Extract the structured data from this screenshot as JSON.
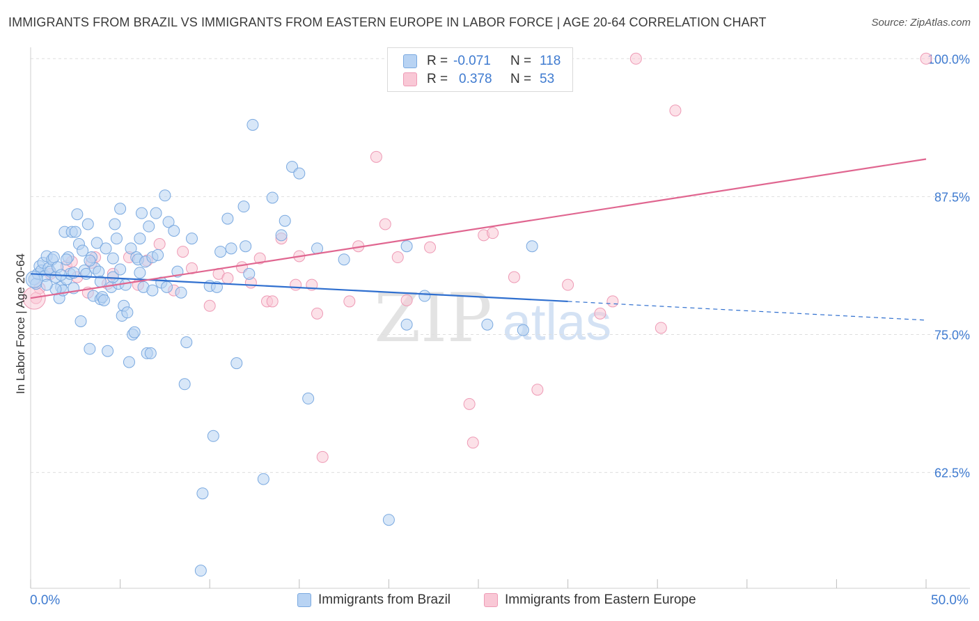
{
  "header": {
    "title": "IMMIGRANTS FROM BRAZIL VS IMMIGRANTS FROM EASTERN EUROPE IN LABOR FORCE | AGE 20-64 CORRELATION CHART",
    "source": "Source: ZipAtlas.com"
  },
  "legend": {
    "rows": [
      {
        "r_label": "R =",
        "r_value": "-0.071",
        "n_label": "N =",
        "n_value": "118"
      },
      {
        "r_label": "R =",
        "r_value": "0.378",
        "n_label": "N =",
        "n_value": "53"
      }
    ]
  },
  "watermark": {
    "zip": "ZIP",
    "atlas": "atlas"
  },
  "colors": {
    "blue_fill": "#b8d3f3",
    "blue_stroke": "#7aa9e0",
    "blue_line": "#2f6fcf",
    "pink_fill": "#f9c8d6",
    "pink_stroke": "#ee9ab5",
    "pink_line": "#e06690",
    "tick_label": "#3f7bd0",
    "grid": "#dedede"
  },
  "chart_data": {
    "type": "scatter",
    "title": "IMMIGRANTS FROM BRAZIL VS IMMIGRANTS FROM EASTERN EUROPE IN LABOR FORCE | AGE 20-64 CORRELATION CHART",
    "xlabel": "",
    "ylabel": "In Labor Force | Age 20-64",
    "xlim": [
      0,
      50
    ],
    "ylim": [
      52,
      100.9
    ],
    "x_tick_labels": [
      "0.0%",
      "50.0%"
    ],
    "y_ticks": [
      62.5,
      75.0,
      87.5,
      100.0
    ],
    "y_tick_labels": [
      "62.5%",
      "75.0%",
      "87.5%",
      "100.0%"
    ],
    "grid": "horizontal dashed",
    "legend_position": "top-center and bottom",
    "series": [
      {
        "name": "Immigrants from Brazil",
        "R": -0.071,
        "N": 118,
        "trend": {
          "x": [
            0,
            30,
            50
          ],
          "y": [
            80.5,
            78.0,
            76.3
          ],
          "solid_until": 30
        },
        "points": [
          [
            0.2,
            80.0
          ],
          [
            0.3,
            79.6
          ],
          [
            0.4,
            80.5
          ],
          [
            0.5,
            81.2
          ],
          [
            0.6,
            80.8
          ],
          [
            0.7,
            81.5
          ],
          [
            0.8,
            80.3
          ],
          [
            0.9,
            82.1
          ],
          [
            1.0,
            81.0
          ],
          [
            1.1,
            80.7
          ],
          [
            1.2,
            81.8
          ],
          [
            1.3,
            82.0
          ],
          [
            1.4,
            80.2
          ],
          [
            1.5,
            81.1
          ],
          [
            1.6,
            78.3
          ],
          [
            1.7,
            79.3
          ],
          [
            1.8,
            79.0
          ],
          [
            1.9,
            84.3
          ],
          [
            2.0,
            80.0
          ],
          [
            2.1,
            82.0
          ],
          [
            2.2,
            80.5
          ],
          [
            2.3,
            84.3
          ],
          [
            2.4,
            79.2
          ],
          [
            2.5,
            84.3
          ],
          [
            2.6,
            85.9
          ],
          [
            2.7,
            83.2
          ],
          [
            2.8,
            76.2
          ],
          [
            2.9,
            82.6
          ],
          [
            3.0,
            80.8
          ],
          [
            3.1,
            80.5
          ],
          [
            3.2,
            85.0
          ],
          [
            3.3,
            73.7
          ],
          [
            3.4,
            82.0
          ],
          [
            3.5,
            78.5
          ],
          [
            3.6,
            81.0
          ],
          [
            3.7,
            83.3
          ],
          [
            3.8,
            80.7
          ],
          [
            3.9,
            78.2
          ],
          [
            4.0,
            78.4
          ],
          [
            4.1,
            78.1
          ],
          [
            4.2,
            82.8
          ],
          [
            4.3,
            73.5
          ],
          [
            4.5,
            79.3
          ],
          [
            4.6,
            81.9
          ],
          [
            4.7,
            85.0
          ],
          [
            4.8,
            83.7
          ],
          [
            4.9,
            79.6
          ],
          [
            5.0,
            86.4
          ],
          [
            5.1,
            76.7
          ],
          [
            5.2,
            77.6
          ],
          [
            5.3,
            79.5
          ],
          [
            5.4,
            77.0
          ],
          [
            5.5,
            72.5
          ],
          [
            5.6,
            82.8
          ],
          [
            5.7,
            75.0
          ],
          [
            5.8,
            75.2
          ],
          [
            5.9,
            82.0
          ],
          [
            6.0,
            81.8
          ],
          [
            6.1,
            83.7
          ],
          [
            6.2,
            86.0
          ],
          [
            6.3,
            79.3
          ],
          [
            6.4,
            81.6
          ],
          [
            6.5,
            73.3
          ],
          [
            6.6,
            84.8
          ],
          [
            6.7,
            73.3
          ],
          [
            6.8,
            82.0
          ],
          [
            7.0,
            86.0
          ],
          [
            7.1,
            82.2
          ],
          [
            7.3,
            79.7
          ],
          [
            7.5,
            87.6
          ],
          [
            7.6,
            79.3
          ],
          [
            7.7,
            85.2
          ],
          [
            8.0,
            84.4
          ],
          [
            8.2,
            80.7
          ],
          [
            8.4,
            78.8
          ],
          [
            8.6,
            70.5
          ],
          [
            8.7,
            74.3
          ],
          [
            9.0,
            83.7
          ],
          [
            9.5,
            53.6
          ],
          [
            9.6,
            60.6
          ],
          [
            10.0,
            79.4
          ],
          [
            10.2,
            65.8
          ],
          [
            10.4,
            79.3
          ],
          [
            10.6,
            82.5
          ],
          [
            11.0,
            85.5
          ],
          [
            11.2,
            82.8
          ],
          [
            11.5,
            72.4
          ],
          [
            11.9,
            86.6
          ],
          [
            12.0,
            83.0
          ],
          [
            12.2,
            80.5
          ],
          [
            12.4,
            94.0
          ],
          [
            13.0,
            61.9
          ],
          [
            13.5,
            87.4
          ],
          [
            14.0,
            84.0
          ],
          [
            14.2,
            85.3
          ],
          [
            14.6,
            90.2
          ],
          [
            15.0,
            89.6
          ],
          [
            15.5,
            69.2
          ],
          [
            16.0,
            82.8
          ],
          [
            17.5,
            81.8
          ],
          [
            20.0,
            58.2
          ],
          [
            21.0,
            75.9
          ],
          [
            21.0,
            83.0
          ],
          [
            22.0,
            78.5
          ],
          [
            25.5,
            75.9
          ],
          [
            27.5,
            75.4
          ],
          [
            28.0,
            83.0
          ],
          [
            4.6,
            80.2
          ],
          [
            6.1,
            80.6
          ],
          [
            3.3,
            81.7
          ],
          [
            2.4,
            80.6
          ],
          [
            1.4,
            79.1
          ],
          [
            2.0,
            81.8
          ],
          [
            5.0,
            80.9
          ],
          [
            0.9,
            79.5
          ],
          [
            1.7,
            80.4
          ],
          [
            3.9,
            79.8
          ],
          [
            6.8,
            79.0
          ]
        ]
      },
      {
        "name": "Immigrants from Eastern Europe",
        "R": 0.378,
        "N": 53,
        "trend": {
          "x": [
            0,
            50
          ],
          "y": [
            78.3,
            90.9
          ],
          "solid_until": 50
        },
        "points": [
          [
            0.3,
            78.3
          ],
          [
            0.5,
            79.2
          ],
          [
            1.1,
            80.5
          ],
          [
            2.0,
            81.2
          ],
          [
            2.3,
            81.6
          ],
          [
            2.6,
            80.2
          ],
          [
            3.2,
            78.8
          ],
          [
            3.4,
            81.5
          ],
          [
            3.6,
            82.0
          ],
          [
            4.3,
            79.6
          ],
          [
            4.6,
            80.5
          ],
          [
            5.5,
            82.0
          ],
          [
            6.0,
            79.5
          ],
          [
            6.5,
            81.7
          ],
          [
            7.2,
            83.2
          ],
          [
            8.0,
            79.0
          ],
          [
            8.5,
            82.5
          ],
          [
            9.0,
            81.0
          ],
          [
            10.0,
            77.6
          ],
          [
            10.5,
            80.5
          ],
          [
            11.0,
            80.1
          ],
          [
            11.8,
            81.1
          ],
          [
            12.3,
            79.7
          ],
          [
            12.8,
            81.9
          ],
          [
            13.2,
            78.0
          ],
          [
            13.5,
            78.0
          ],
          [
            14.0,
            83.7
          ],
          [
            14.8,
            79.5
          ],
          [
            15.0,
            82.1
          ],
          [
            15.7,
            79.5
          ],
          [
            16.0,
            76.9
          ],
          [
            16.3,
            63.9
          ],
          [
            17.8,
            78.0
          ],
          [
            18.3,
            83.0
          ],
          [
            19.3,
            91.1
          ],
          [
            19.8,
            85.0
          ],
          [
            20.5,
            82.0
          ],
          [
            21.0,
            78.1
          ],
          [
            22.3,
            82.9
          ],
          [
            24.5,
            68.7
          ],
          [
            24.7,
            65.2
          ],
          [
            25.3,
            84.0
          ],
          [
            25.8,
            84.2
          ],
          [
            27.0,
            80.2
          ],
          [
            28.3,
            70.0
          ],
          [
            30.0,
            79.5
          ],
          [
            31.8,
            76.9
          ],
          [
            32.5,
            78.0
          ],
          [
            35.2,
            75.6
          ],
          [
            36.0,
            95.3
          ],
          [
            20.3,
            100.0
          ],
          [
            33.8,
            100.0
          ],
          [
            50.0,
            100.0
          ]
        ]
      }
    ]
  },
  "y_axis_title": "In Labor Force | Age 20-64",
  "x_axis": {
    "left_label": "0.0%",
    "right_label": "50.0%"
  },
  "bottom_legend": [
    "Immigrants from Brazil",
    "Immigrants from Eastern Europe"
  ]
}
